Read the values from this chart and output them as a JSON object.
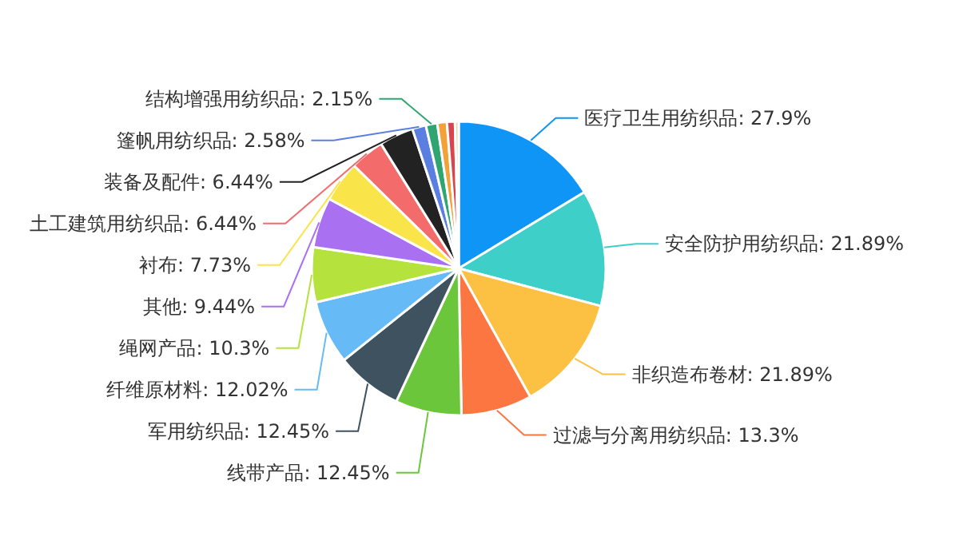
{
  "chart_data": {
    "type": "pie",
    "categories": [
      "医疗卫生用纺织品: 27.9%",
      "安全防护用纺织品: 21.89%",
      "非织造布卷材: 21.89%",
      "过滤与分离用纺织品: 13.3%",
      "线带产品: 12.45%",
      "军用纺织品: 12.45%",
      "纤维原材料: 12.02%",
      "绳网产品: 10.3%",
      "其他: 9.44%",
      "衬布: 7.73%",
      "土工建筑用纺织品: 6.44%",
      "装备及配件: 6.44%",
      "篷帆用纺织品: 2.58%",
      "结构增强用纺织品: 2.15%",
      null,
      null,
      null
    ],
    "values": [
      27.9,
      21.89,
      21.89,
      13.3,
      12.45,
      12.45,
      12.02,
      10.3,
      9.44,
      7.73,
      6.44,
      6.44,
      2.58,
      2.15,
      1.8,
      1.5,
      0.7
    ],
    "colors": [
      "#0e95f5",
      "#3fcfc9",
      "#fcc043",
      "#fb7640",
      "#6cc63c",
      "#3e5260",
      "#66bbf7",
      "#b5e23c",
      "#a970f2",
      "#f9e44a",
      "#f46b6b",
      "#222222",
      "#5b7fe0",
      "#2fa672",
      "#f3a23a",
      "#d9454f",
      "#f2d6a0"
    ]
  }
}
